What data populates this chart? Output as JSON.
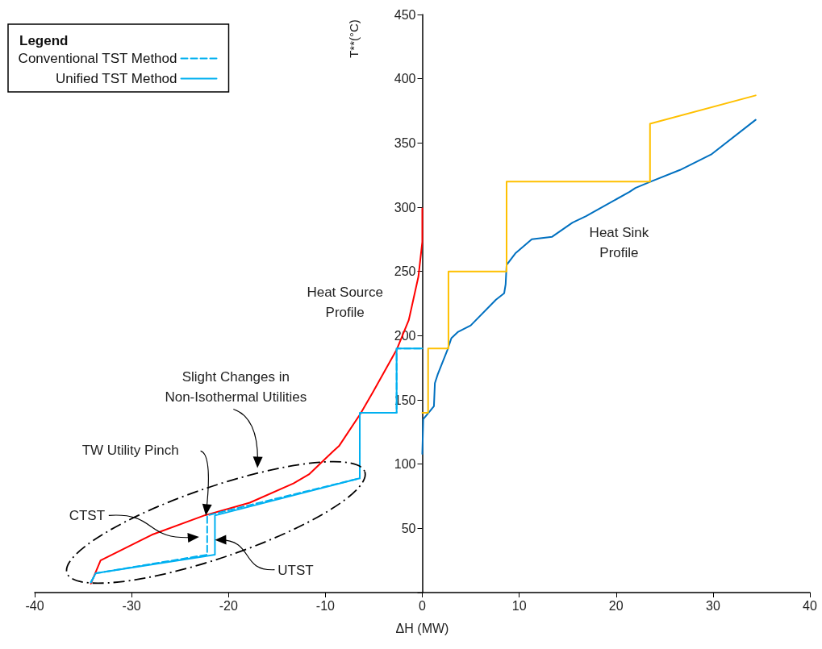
{
  "chart_data": {
    "type": "line",
    "xlabel": "ΔH (MW)",
    "ylabel": "T**(°C)",
    "legend_title": "Legend",
    "legend": "top left",
    "grid": false,
    "marker": "none",
    "xlim": [
      -40,
      40
    ],
    "xticks": [
      -40,
      -30,
      -20,
      -10,
      0,
      10,
      20,
      30,
      40
    ],
    "ylim": [
      0,
      450
    ],
    "yticks": [
      {
        "value": 0,
        "label": null
      },
      50,
      100,
      150,
      200,
      250,
      300,
      350,
      400,
      450
    ],
    "series": [
      {
        "color": "#ff0000",
        "x": [
          -34.2,
          -33.2,
          -28.7,
          -27.9,
          -22.5,
          -17.8,
          -13.3,
          -11.7,
          -9.2,
          -8.6,
          -6.4,
          -5.1,
          -2.65,
          -1.4,
          -0.4,
          0,
          0
        ],
        "values": [
          7,
          25,
          42,
          45,
          60,
          70,
          85,
          92,
          110,
          114,
          139,
          156,
          189,
          212,
          246,
          273,
          299
        ]
      },
      {
        "name": "Conventional TST Method",
        "line_style": "dashed",
        "color": "#00b0f0",
        "x": [
          -34.2,
          -33.7,
          -22.2,
          -22.2,
          -6.45,
          -6.45,
          -2.65,
          -2.65,
          0
        ],
        "values": [
          8,
          15,
          29.5,
          60,
          89,
          140,
          140,
          190,
          190
        ]
      },
      {
        "name": "Unified TST Method",
        "line_style": "solid",
        "color": "#00b0f0",
        "x": [
          -34.2,
          -33.7,
          -21.4,
          -21.4,
          -6.45,
          -6.45,
          -2.65,
          -2.65,
          0
        ],
        "values": [
          8,
          15,
          29.5,
          60,
          89,
          140,
          140,
          190,
          190
        ]
      },
      {
        "color": "#0070c0",
        "x": [
          0,
          0.1,
          1.2,
          1.3,
          1.6,
          2.6,
          3.0,
          3.7,
          5.0,
          7.6,
          8.45,
          8.6,
          8.7,
          9.6,
          11.3,
          13.4,
          15.5,
          16.9,
          17.6,
          21.4,
          22.0,
          23.6,
          26.6,
          29.8,
          34.4
        ],
        "values": [
          108,
          135,
          145,
          163,
          170,
          189,
          198,
          203,
          208,
          228,
          233,
          240,
          255,
          264,
          275,
          277,
          288,
          293,
          296,
          312,
          315,
          320,
          329,
          341,
          368
        ]
      },
      {
        "color": "#ffc000",
        "x": [
          0,
          0.6,
          0.6,
          2.7,
          2.7,
          8.7,
          8.7,
          23.5,
          23.5,
          34.4
        ],
        "values": [
          140,
          140,
          190,
          190,
          250,
          250,
          320,
          320,
          365,
          387
        ]
      }
    ],
    "annotations": [
      {
        "text": "Heat Source\nProfile",
        "x": -1.4,
        "y": 212
      },
      {
        "text": "Heat Sink\nProfile",
        "x": 13.4,
        "y": 277
      },
      "Slight Changes in\nNon-Isothermal Utilities",
      "TW Utility Pinch",
      "CTST",
      {
        "text": "UTST",
        "x": -21.4,
        "y": 41
      }
    ]
  }
}
